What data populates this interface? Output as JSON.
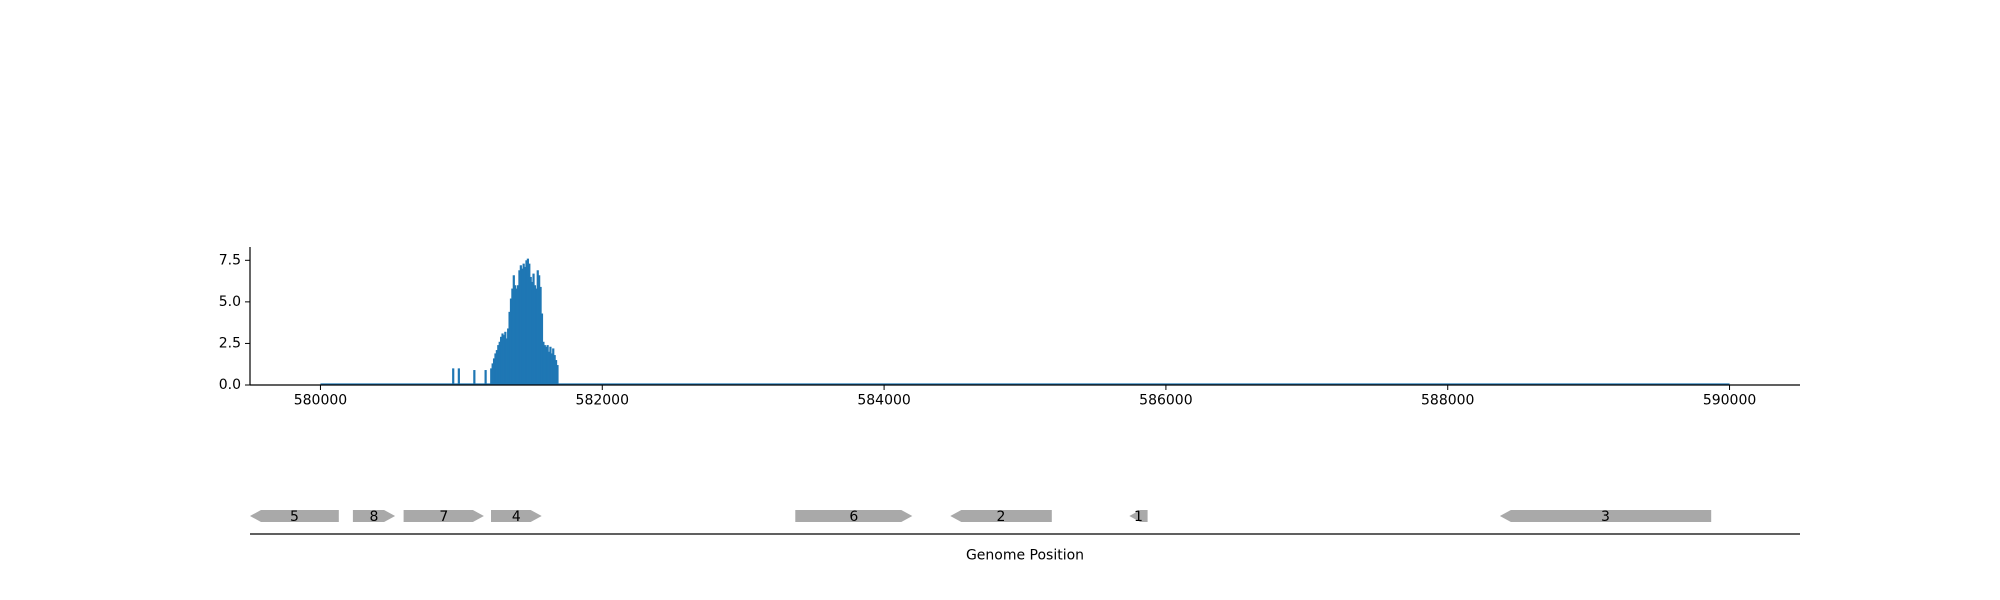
{
  "chart_data": [
    {
      "type": "area",
      "title": "",
      "xlabel": "",
      "ylabel": "",
      "xlim": [
        579500,
        590500
      ],
      "ylim": [
        0,
        8.3
      ],
      "x_ticks": [
        580000,
        582000,
        584000,
        586000,
        588000,
        590000
      ],
      "x_tick_labels": [
        "580000",
        "582000",
        "584000",
        "586000",
        "588000",
        "590000"
      ],
      "y_ticks": [
        0.0,
        2.5,
        5.0,
        7.5
      ],
      "y_tick_labels": [
        "0.0",
        "2.5",
        "5.0",
        "7.5"
      ],
      "grid": false,
      "color": "#1f77b4",
      "series": [
        {
          "x": [
            580000,
            580930,
            580940,
            580950,
            580970,
            580980,
            580990,
            581080,
            581090,
            581100,
            581160,
            581170,
            581180,
            581200,
            581210,
            581220,
            581230,
            581240,
            581250,
            581260,
            581270,
            581280,
            581290,
            581300,
            581310,
            581320,
            581330,
            581340,
            581350,
            581360,
            581370,
            581380,
            581390,
            581400,
            581410,
            581420,
            581430,
            581440,
            581450,
            581460,
            581470,
            581480,
            581490,
            581500,
            581510,
            581520,
            581530,
            581540,
            581550,
            581560,
            581570,
            581580,
            581590,
            581600,
            581610,
            581620,
            581630,
            581640,
            581650,
            581660,
            581670,
            581680,
            581690,
            581700,
            581710,
            581720,
            581730,
            581740,
            581750,
            581760,
            581770,
            581780,
            581790,
            581800,
            581810,
            581820,
            581830,
            590000
          ],
          "y": [
            0,
            0,
            1.0,
            0,
            0,
            1.0,
            0,
            0,
            0.9,
            0,
            0,
            0.9,
            0,
            0,
            1.0,
            1.3,
            1.6,
            1.9,
            2.1,
            2.4,
            2.6,
            2.9,
            3.1,
            3.0,
            3.2,
            2.8,
            3.4,
            4.4,
            5.2,
            5.8,
            6.6,
            6.0,
            5.8,
            6.0,
            6.9,
            7.2,
            7.0,
            7.3,
            7.1,
            7.5,
            7.6,
            7.3,
            6.5,
            6.2,
            6.7,
            6.0,
            5.8,
            6.9,
            6.6,
            5.9,
            4.3,
            2.6,
            2.4,
            2.3,
            2.4,
            2.0,
            2.3,
            1.9,
            2.2,
            1.8,
            1.5,
            1.2,
            0,
            0,
            0,
            0,
            0,
            0,
            0,
            0,
            0,
            0,
            0,
            0,
            0,
            0,
            0,
            0
          ]
        }
      ]
    },
    {
      "type": "gene-track",
      "xlabel": "Genome Position",
      "genes": [
        {
          "label": "5",
          "start": 579500,
          "end": 580130,
          "strand": "-"
        },
        {
          "label": "8",
          "start": 580230,
          "end": 580530,
          "strand": "+"
        },
        {
          "label": "7",
          "start": 580590,
          "end": 581160,
          "strand": "+"
        },
        {
          "label": "4",
          "start": 581210,
          "end": 581570,
          "strand": "+"
        },
        {
          "label": "6",
          "start": 583370,
          "end": 584200,
          "strand": "+"
        },
        {
          "label": "2",
          "start": 584470,
          "end": 585190,
          "strand": "-"
        },
        {
          "label": "1",
          "start": 585740,
          "end": 585870,
          "strand": "-"
        },
        {
          "label": "3",
          "start": 588370,
          "end": 589870,
          "strand": "-"
        }
      ],
      "gene_color": "#a9a9a9"
    }
  ]
}
